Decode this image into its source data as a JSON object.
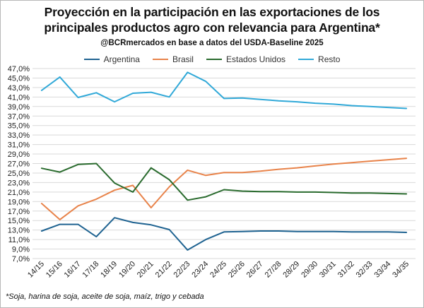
{
  "title_line1": "Proyección en la participación en las exportaciones de los",
  "title_line2": "principales productos agro con relevancia para Argentina*",
  "subtitle": "@BCRmercados  en base a datos del USDA-Baseline 2025",
  "footnote": "*Soja, harina de soja, aceite de soja, maíz, trigo y cebada",
  "chart_data": {
    "type": "line",
    "title": "Proyección en la participación en las exportaciones de los principales productos agro con relevancia para Argentina*",
    "xlabel": "",
    "ylabel": "",
    "ylim": [
      7,
      47
    ],
    "y_tick_step": 2,
    "y_unit": "%",
    "grid": true,
    "legend_position": "top",
    "categories": [
      "14/15",
      "15/16",
      "16/17",
      "17/18",
      "18/19",
      "19/20",
      "20/21",
      "21/22",
      "22/23",
      "23/24",
      "24/25",
      "25/26",
      "26/27",
      "27/28",
      "28/29",
      "29/30",
      "30/31",
      "31/32",
      "32/33",
      "33/34",
      "34/35"
    ],
    "series": [
      {
        "name": "Argentina",
        "color": "#1f6391",
        "values": [
          12.8,
          14.2,
          14.2,
          11.6,
          15.6,
          14.6,
          14.1,
          13.1,
          8.8,
          11.0,
          12.6,
          12.7,
          12.8,
          12.8,
          12.7,
          12.7,
          12.7,
          12.6,
          12.6,
          12.6,
          12.5
        ]
      },
      {
        "name": "Brasil",
        "color": "#e8834a",
        "values": [
          18.6,
          15.2,
          18.1,
          19.5,
          21.4,
          22.4,
          17.7,
          22.1,
          25.6,
          24.5,
          25.1,
          25.1,
          25.4,
          25.8,
          26.1,
          26.5,
          26.9,
          27.2,
          27.5,
          27.8,
          28.1
        ]
      },
      {
        "name": "Estados Unidos",
        "color": "#2a6b2e",
        "values": [
          26.0,
          25.2,
          26.8,
          27.0,
          22.9,
          21.0,
          26.1,
          23.6,
          19.3,
          20.0,
          21.5,
          21.2,
          21.1,
          21.1,
          21.0,
          21.0,
          20.9,
          20.8,
          20.8,
          20.7,
          20.6
        ]
      },
      {
        "name": "Resto",
        "color": "#31a9d8",
        "values": [
          42.4,
          45.2,
          40.9,
          41.9,
          40.0,
          41.8,
          42.0,
          41.0,
          46.2,
          44.3,
          40.7,
          40.8,
          40.5,
          40.2,
          40.0,
          39.7,
          39.5,
          39.2,
          39.0,
          38.8,
          38.6
        ]
      }
    ]
  }
}
